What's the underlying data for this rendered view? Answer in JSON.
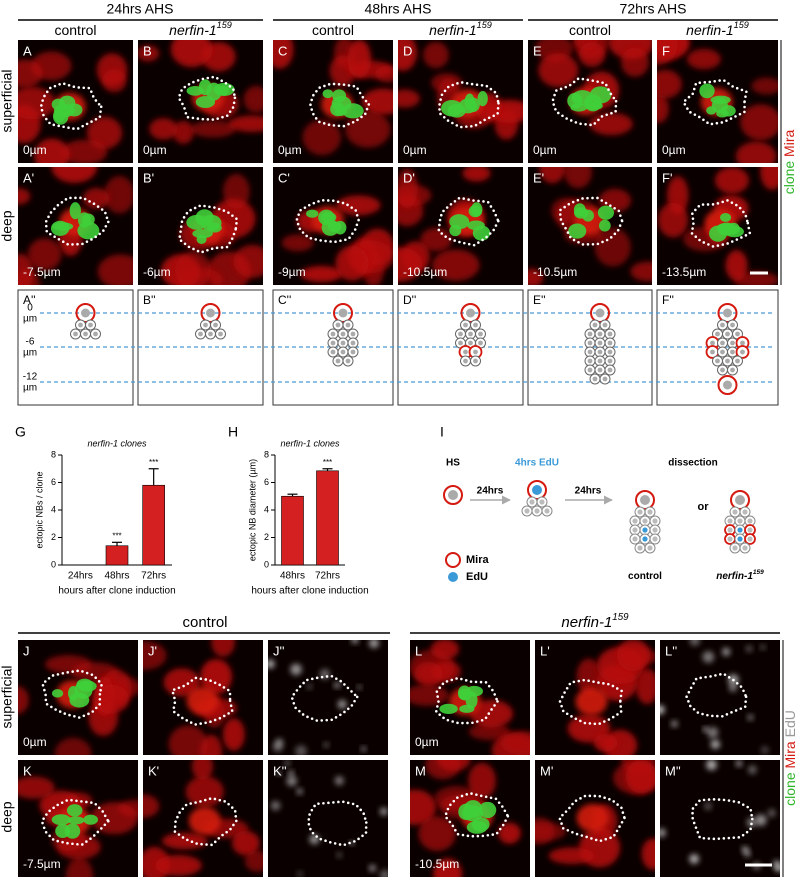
{
  "top": {
    "time_headers": [
      "24hrs AHS",
      "48hrs AHS",
      "72hrs AHS"
    ],
    "genotypes": [
      {
        "text": "control"
      },
      {
        "text": "nerfin-1",
        "sup": "159"
      },
      {
        "text": "control"
      },
      {
        "text": "nerfin-1",
        "sup": "159"
      },
      {
        "text": "control"
      },
      {
        "text": "nerfin-1",
        "sup": "159"
      }
    ],
    "rows": [
      "superficial",
      "deep"
    ],
    "channel_labels": [
      "clone",
      "Mira"
    ],
    "superficial_panels": [
      {
        "letter": "A",
        "depth": "0µm"
      },
      {
        "letter": "B",
        "depth": "0µm"
      },
      {
        "letter": "C",
        "depth": "0µm"
      },
      {
        "letter": "D",
        "depth": "0µm"
      },
      {
        "letter": "E",
        "depth": "0µm"
      },
      {
        "letter": "F",
        "depth": "0µm"
      }
    ],
    "deep_panels": [
      {
        "letter": "A'",
        "depth": "-7.5µm"
      },
      {
        "letter": "B'",
        "depth": "-6µm"
      },
      {
        "letter": "C'",
        "depth": "-9µm"
      },
      {
        "letter": "D'",
        "depth": "-10.5µm"
      },
      {
        "letter": "E'",
        "depth": "-10.5µm"
      },
      {
        "letter": "F'",
        "depth": "-13.5µm"
      }
    ],
    "schematic_panels": [
      "A''",
      "B''",
      "C''",
      "D''",
      "E''",
      "F''"
    ],
    "depth_axis": {
      "levels": [
        "0",
        "-6",
        "-12"
      ],
      "unit": "µm"
    }
  },
  "chart_data": [
    {
      "type": "bar",
      "panel": "G",
      "title": "nerfin-1 clones",
      "y_label": "ectopic NBs / clone",
      "x_label": "hours after clone induction",
      "categories": [
        "24hrs",
        "48hrs",
        "72hrs"
      ],
      "values": [
        0,
        1.4,
        5.8
      ],
      "errors": [
        0,
        0.25,
        1.2
      ],
      "significance": [
        null,
        "***",
        "***"
      ],
      "color": "#d42020",
      "ylim": [
        0,
        8
      ],
      "yticks": [
        0,
        2,
        4,
        6,
        8
      ]
    },
    {
      "type": "bar",
      "panel": "H",
      "title": "nerfin-1 clones",
      "y_label": "ectopic NB diameter (µm)",
      "x_label": "hours after clone induction",
      "categories": [
        "48hrs",
        "72hrs"
      ],
      "values": [
        5.0,
        6.85
      ],
      "errors": [
        0.15,
        0.15
      ],
      "significance": [
        null,
        "***"
      ],
      "color": "#d42020",
      "ylim": [
        0,
        8
      ],
      "yticks": [
        0,
        2,
        4,
        6,
        8
      ]
    }
  ],
  "panel_I": {
    "letter": "I",
    "hs": "HS",
    "edu_pulse": "4hrs EdU",
    "dissection": "dissection",
    "intervals": [
      "24hrs",
      "24hrs"
    ],
    "or": "or",
    "legend": [
      "Mira",
      "EdU"
    ],
    "outcomes": [
      {
        "text": "control"
      },
      {
        "text": "nerfin-1",
        "sup": "159"
      }
    ]
  },
  "bottom": {
    "groups": [
      {
        "text": "control"
      },
      {
        "text": "nerfin-1",
        "sup": "159"
      }
    ],
    "rows": [
      "superficial",
      "deep"
    ],
    "channel_labels": [
      "clone",
      "Mira",
      "EdU"
    ],
    "superficial_panels": [
      {
        "letter": "J",
        "depth": "0µm"
      },
      {
        "letter": "J'"
      },
      {
        "letter": "J''"
      },
      {
        "letter": "L",
        "depth": "0µm"
      },
      {
        "letter": "L'"
      },
      {
        "letter": "L''"
      }
    ],
    "deep_panels": [
      {
        "letter": "K",
        "depth": "-7.5µm"
      },
      {
        "letter": "K'"
      },
      {
        "letter": "K''"
      },
      {
        "letter": "M",
        "depth": "-10.5µm"
      },
      {
        "letter": "M'"
      },
      {
        "letter": "M''"
      }
    ]
  }
}
